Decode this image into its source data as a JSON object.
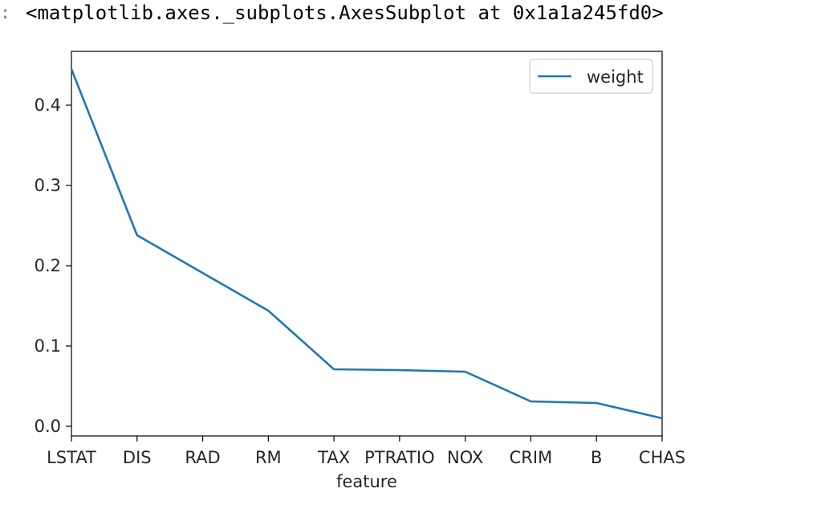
{
  "cell": {
    "prompt": ":",
    "output_repr": "<matplotlib.axes._subplots.AxesSubplot at 0x1a1a245fd0>"
  },
  "chart_data": {
    "type": "line",
    "title": "",
    "xlabel": "feature",
    "ylabel": "",
    "categories": [
      "LSTAT",
      "DIS",
      "RAD",
      "RM",
      "TAX",
      "PTRATIO",
      "NOX",
      "CRIM",
      "B",
      "CHAS"
    ],
    "series": [
      {
        "name": "weight",
        "color": "#1f77b4",
        "values": [
          0.445,
          0.238,
          0.191,
          0.144,
          0.071,
          0.07,
          0.068,
          0.031,
          0.029,
          0.01
        ]
      }
    ],
    "yticks": [
      0.0,
      0.1,
      0.2,
      0.3,
      0.4
    ],
    "ytick_labels": [
      "0.0",
      "0.1",
      "0.2",
      "0.3",
      "0.4"
    ],
    "ylim": [
      -0.012,
      0.467
    ],
    "grid": false,
    "legend_position": "top-right"
  }
}
